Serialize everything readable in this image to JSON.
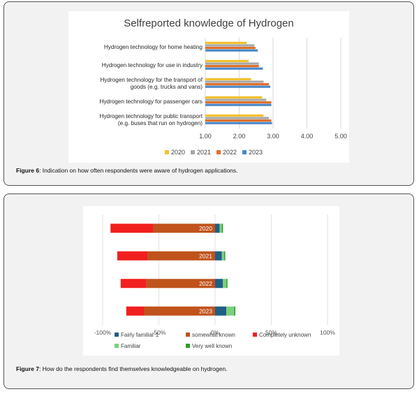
{
  "figure6": {
    "caption_label": "Figure 6",
    "caption_text": ": Indication on how often respondents were aware of hydrogen applications.",
    "colors": {
      "2020": "#f2c12e",
      "2021": "#a6a6a6",
      "2022": "#e0702c",
      "2023": "#4a89c8"
    }
  },
  "figure7": {
    "caption_label": "Figure 7",
    "caption_text": ": How do the respondents find themselves knowledgeable on hydrogen.",
    "colors": {
      "Fairly familiar 1": "#1f5f86",
      "somewhat known": "#c0531c",
      "Completely unknown": "#f21f1f",
      "Familiar": "#7bd07b",
      "Very well known": "#2e9e2e"
    }
  },
  "chart_data": [
    {
      "type": "bar",
      "orientation": "horizontal",
      "title": "Selfreported knowledge of Hydrogen",
      "categories": [
        [
          "Hydrogen technology for home heating"
        ],
        [
          "Hydrogen technology for use in industry"
        ],
        [
          "Hydrogen technology for the transport of",
          "goods (e.g. trucks and vans)"
        ],
        [
          "Hydrogen technology for passenger cars"
        ],
        [
          "Hydrogen technology for public transport",
          "(e.g. buses that run on hydrogen)"
        ]
      ],
      "series": [
        {
          "name": "2020",
          "values": [
            2.22,
            2.28,
            2.35,
            2.68,
            2.72
          ]
        },
        {
          "name": "2021",
          "values": [
            2.45,
            2.58,
            2.72,
            2.8,
            2.88
          ]
        },
        {
          "name": "2022",
          "values": [
            2.48,
            2.58,
            2.88,
            2.95,
            2.95
          ]
        },
        {
          "name": "2023",
          "values": [
            2.55,
            2.7,
            2.92,
            2.95,
            2.97
          ]
        }
      ],
      "xlim": [
        1.0,
        5.0
      ],
      "xticks": [
        "1.00",
        "2.00",
        "3.00",
        "4.00",
        "5.00"
      ],
      "legend_position": "bottom",
      "grid": true
    },
    {
      "type": "bar",
      "orientation": "horizontal",
      "stacked": true,
      "diverging": true,
      "title": "",
      "categories": [
        "2020",
        "2021",
        "2022",
        "2023"
      ],
      "series": [
        {
          "name": "Fairly familiar 1",
          "side": "positive",
          "values": [
            4,
            6,
            7,
            10
          ]
        },
        {
          "name": "somewhat known",
          "side": "negative",
          "values": [
            -55,
            -60,
            -61,
            -63
          ]
        },
        {
          "name": "Completely unknown",
          "side": "negative",
          "values": [
            -38,
            -27,
            -23,
            -16
          ]
        },
        {
          "name": "Familiar",
          "side": "positive",
          "values": [
            2,
            2,
            3,
            7
          ]
        },
        {
          "name": "Very well known",
          "side": "positive",
          "values": [
            1,
            1,
            1,
            1
          ]
        }
      ],
      "xlim": [
        -100,
        100
      ],
      "xticks": [
        "-100%",
        "-50%",
        "0%",
        "50%",
        "100%"
      ],
      "legend_position": "bottom",
      "grid": true
    }
  ]
}
